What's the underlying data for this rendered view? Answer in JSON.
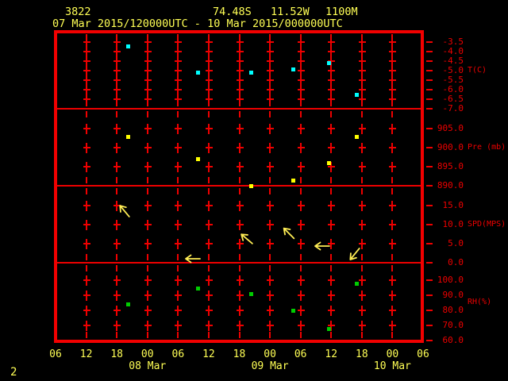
{
  "header": {
    "station_id": "3822",
    "latitude": "74.48S",
    "longitude": "11.52W",
    "elevation": "1100M",
    "time_range": "07 Mar 2015/120000UTC - 10 Mar 2015/000000UTC"
  },
  "footer": {
    "frame_number": "2"
  },
  "colors": {
    "background": "#000000",
    "grid_red": "#ee0000",
    "border_red": "#f20000",
    "text_yellow": "#ffff55",
    "marker_temperature": "#00ffff",
    "marker_pressure": "#ffff00",
    "marker_rh": "#00cc00",
    "wind_arrow": "#ffee55"
  },
  "plot": {
    "x_axis": {
      "tick_labels": [
        "06",
        "12",
        "18",
        "00",
        "06",
        "12",
        "18",
        "00",
        "06",
        "12",
        "18",
        "00",
        "06"
      ],
      "date_labels": [
        {
          "label": "08 Mar",
          "tick_index": 3
        },
        {
          "label": "09 Mar",
          "tick_index": 7
        },
        {
          "label": "10 Mar",
          "tick_index": 11
        }
      ]
    },
    "y_panels": [
      {
        "unit_label": "T(C)",
        "tick_labels": [
          "-3.5",
          "-4.0",
          "-4.5",
          "-5.0",
          "-5.5",
          "-6.0",
          "-6.5",
          "-7.0"
        ]
      },
      {
        "unit_label": "Pre (mb)",
        "tick_labels": [
          "905.0",
          "900.0",
          "895.0",
          "890.0"
        ]
      },
      {
        "unit_label": "SPD(MPS)",
        "tick_labels": [
          "15.0",
          "10.0",
          "5.0",
          "0.0"
        ]
      },
      {
        "unit_label": "RH(%)",
        "tick_labels": [
          "100.0",
          "90.0",
          "80.0",
          "70.0",
          "60.0"
        ]
      }
    ]
  },
  "chart_data": [
    {
      "type": "scatter",
      "title": "Temperature",
      "ylabel": "T(C)",
      "ylim": [
        -7.0,
        -3.5
      ],
      "x_range": [
        "07 Mar 2015 06UTC",
        "10 Mar 2015 06UTC"
      ],
      "x_tick_interval_hours": 6,
      "color": "#00ffff",
      "points": [
        {
          "hours_after_start": 14.2,
          "time_est": "07 Mar ~20UTC",
          "value": -3.7
        },
        {
          "hours_after_start": 27.9,
          "time_est": "08 Mar ~10UTC",
          "value": -5.1
        },
        {
          "hours_after_start": 38.3,
          "time_est": "08 Mar ~20UTC",
          "value": -5.1
        },
        {
          "hours_after_start": 46.5,
          "time_est": "09 Mar ~04UTC",
          "value": -4.9
        },
        {
          "hours_after_start": 53.5,
          "time_est": "09 Mar ~11UTC",
          "value": -4.6
        },
        {
          "hours_after_start": 59.0,
          "time_est": "09 Mar ~17UTC",
          "value": -6.25
        }
      ]
    },
    {
      "type": "scatter",
      "title": "Pressure",
      "ylabel": "Pre (mb)",
      "ylim": [
        890,
        905
      ],
      "x_range": [
        "07 Mar 2015 06UTC",
        "10 Mar 2015 06UTC"
      ],
      "x_tick_interval_hours": 6,
      "color": "#ffff00",
      "points": [
        {
          "hours_after_start": 14.2,
          "time_est": "07 Mar ~20UTC",
          "value": 903.0
        },
        {
          "hours_after_start": 27.9,
          "time_est": "08 Mar ~10UTC",
          "value": 897.0
        },
        {
          "hours_after_start": 38.3,
          "time_est": "08 Mar ~20UTC",
          "value": 890.0
        },
        {
          "hours_after_start": 46.5,
          "time_est": "09 Mar ~04UTC",
          "value": 891.5
        },
        {
          "hours_after_start": 53.5,
          "time_est": "09 Mar ~11UTC",
          "value": 896.0
        },
        {
          "hours_after_start": 59.0,
          "time_est": "09 Mar ~17UTC",
          "value": 903.0
        }
      ]
    },
    {
      "type": "wind",
      "title": "Wind speed and direction (arrows point in wind direction)",
      "ylabel": "SPD(MPS)",
      "ylim": [
        0,
        15
      ],
      "x_range": [
        "07 Mar 2015 06UTC",
        "10 Mar 2015 06UTC"
      ],
      "x_tick_interval_hours": 6,
      "color": "#ffee55",
      "points": [
        {
          "hours_after_start": 13.5,
          "time_est": "07 Mar ~19UTC",
          "value": 13.5,
          "direction_deg_ccw_from_east": 130
        },
        {
          "hours_after_start": 26.9,
          "time_est": "08 Mar ~09UTC",
          "value": 1.0,
          "direction_deg_ccw_from_east": 180
        },
        {
          "hours_after_start": 37.5,
          "time_est": "08 Mar ~19UTC",
          "value": 6.3,
          "direction_deg_ccw_from_east": 140
        },
        {
          "hours_after_start": 45.7,
          "time_est": "09 Mar ~03UTC",
          "value": 7.7,
          "direction_deg_ccw_from_east": 135
        },
        {
          "hours_after_start": 52.2,
          "time_est": "09 Mar ~10UTC",
          "value": 4.4,
          "direction_deg_ccw_from_east": 180
        },
        {
          "hours_after_start": 58.6,
          "time_est": "09 Mar ~16UTC",
          "value": 2.3,
          "direction_deg_ccw_from_east": 231
        }
      ]
    },
    {
      "type": "scatter",
      "title": "Relative humidity",
      "ylabel": "RH(%)",
      "ylim": [
        60,
        100
      ],
      "x_range": [
        "07 Mar 2015 06UTC",
        "10 Mar 2015 06UTC"
      ],
      "x_tick_interval_hours": 6,
      "color": "#00cc00",
      "points": [
        {
          "hours_after_start": 14.2,
          "time_est": "07 Mar ~20UTC",
          "value": 84
        },
        {
          "hours_after_start": 27.9,
          "time_est": "08 Mar ~10UTC",
          "value": 95
        },
        {
          "hours_after_start": 38.3,
          "time_est": "08 Mar ~20UTC",
          "value": 91
        },
        {
          "hours_after_start": 46.5,
          "time_est": "09 Mar ~04UTC",
          "value": 80
        },
        {
          "hours_after_start": 53.5,
          "time_est": "09 Mar ~11UTC",
          "value": 68
        },
        {
          "hours_after_start": 59.0,
          "time_est": "09 Mar ~17UTC",
          "value": 98
        }
      ]
    }
  ]
}
